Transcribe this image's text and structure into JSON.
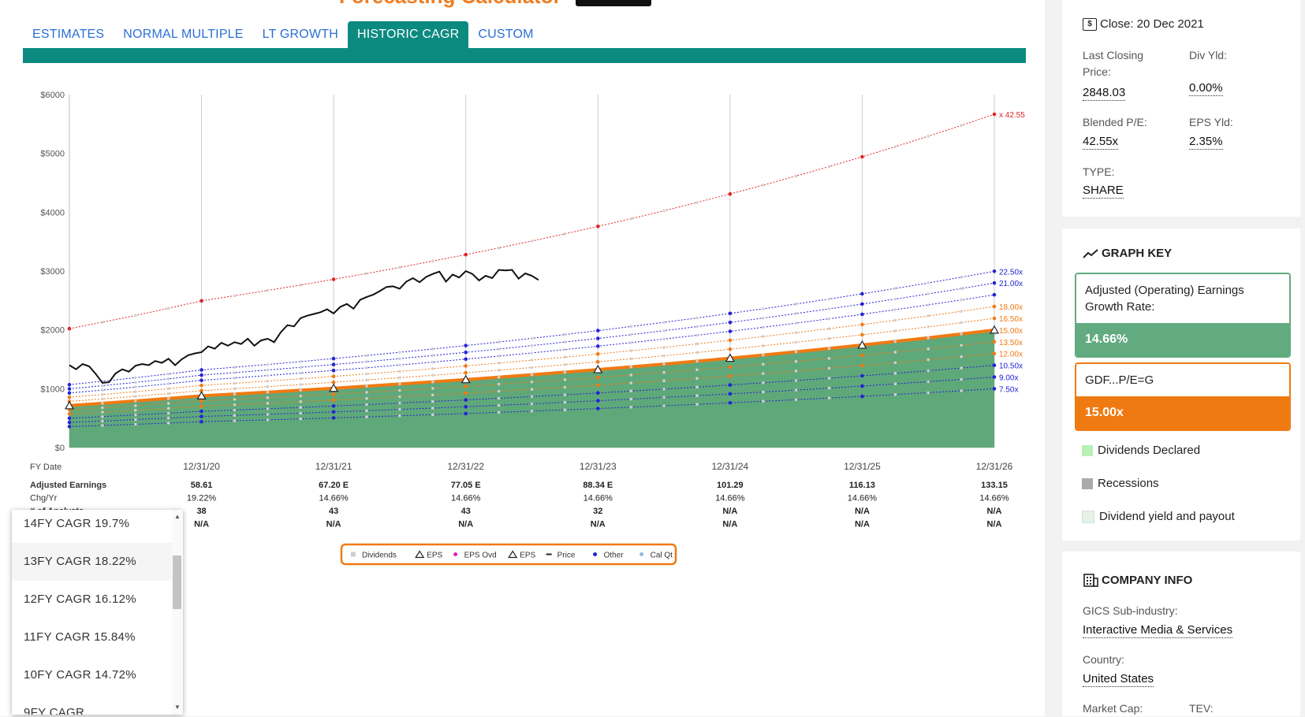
{
  "tabs": [
    {
      "label": "ESTIMATES"
    },
    {
      "label": "NORMAL MULTIPLE"
    },
    {
      "label": "LT GROWTH"
    },
    {
      "label": "HISTORIC CAGR",
      "active": true
    },
    {
      "label": "CUSTOM"
    }
  ],
  "chart_data": {
    "type": "area",
    "y_ticks": [
      "$6000",
      "$5000",
      "$4000",
      "$3000",
      "$2000",
      "$1000",
      "$0"
    ],
    "ylim": [
      0,
      6000
    ],
    "x_label": "FY Date",
    "x_categories": [
      "12/31/20",
      "12/31/21",
      "12/31/22",
      "12/31/23",
      "12/31/24",
      "12/31/25",
      "12/31/26"
    ],
    "grid": true,
    "table_rows": [
      {
        "label": "Adjusted Earnings",
        "bold": true,
        "values": [
          "58.61",
          "67.20 E",
          "77.05 E",
          "88.34 E",
          "101.29",
          "116.13",
          "133.15"
        ]
      },
      {
        "label": "Chg/Yr",
        "bold": false,
        "values": [
          "19.22%",
          "14.66%",
          "14.66%",
          "14.66%",
          "14.66%",
          "14.66%",
          "14.66%"
        ]
      },
      {
        "label": "# of Analysts",
        "bold": true,
        "values": [
          "38",
          "43",
          "43",
          "32",
          "N/A",
          "N/A",
          "N/A"
        ]
      },
      {
        "label": "",
        "bold": true,
        "values": [
          "N/A",
          "N/A",
          "N/A",
          "N/A",
          "N/A",
          "N/A",
          "N/A"
        ]
      }
    ],
    "earnings_x": [
      0,
      1,
      2,
      3,
      4,
      5,
      6,
      7
    ],
    "earnings": [
      47.5,
      58.61,
      67.2,
      77.05,
      88.34,
      101.29,
      116.13,
      133.15
    ],
    "pe_lines": [
      {
        "label": "x 42.55",
        "pe": 42.55,
        "color": "#e02424"
      },
      {
        "label": "22.50x",
        "pe": 22.5,
        "color": "#2323d6"
      },
      {
        "label": "21.00x",
        "pe": 21.0,
        "color": "#2323d6"
      },
      {
        "label": "",
        "pe": 19.5,
        "color": "#2323d6"
      },
      {
        "label": "18.00x",
        "pe": 18.0,
        "color": "#f07a12"
      },
      {
        "label": "16.50x",
        "pe": 16.5,
        "color": "#f07a12"
      },
      {
        "label": "15.00x",
        "pe": 15.0,
        "color": "#f07a12",
        "main": true
      },
      {
        "label": "13.50x",
        "pe": 13.5,
        "color": "#f07a12"
      },
      {
        "label": "12.00x",
        "pe": 12.0,
        "color": "#f07a12"
      },
      {
        "label": "10.50x",
        "pe": 10.5,
        "color": "#2323d6"
      },
      {
        "label": "9.00x",
        "pe": 9.0,
        "color": "#2323d6"
      },
      {
        "label": "7.50x",
        "pe": 7.5,
        "color": "#2323d6"
      }
    ],
    "price_series": [
      [
        0.0,
        1400
      ],
      [
        0.05,
        1330
      ],
      [
        0.1,
        1420
      ],
      [
        0.15,
        1380
      ],
      [
        0.2,
        1250
      ],
      [
        0.25,
        1100
      ],
      [
        0.3,
        1110
      ],
      [
        0.35,
        1260
      ],
      [
        0.4,
        1330
      ],
      [
        0.45,
        1290
      ],
      [
        0.5,
        1390
      ],
      [
        0.55,
        1420
      ],
      [
        0.6,
        1400
      ],
      [
        0.65,
        1470
      ],
      [
        0.7,
        1440
      ],
      [
        0.75,
        1510
      ],
      [
        0.8,
        1400
      ],
      [
        0.85,
        1500
      ],
      [
        0.9,
        1570
      ],
      [
        0.95,
        1600
      ],
      [
        1.0,
        1620
      ],
      [
        1.05,
        1720
      ],
      [
        1.1,
        1680
      ],
      [
        1.15,
        1780
      ],
      [
        1.2,
        1730
      ],
      [
        1.25,
        1790
      ],
      [
        1.3,
        1760
      ],
      [
        1.35,
        1850
      ],
      [
        1.4,
        1730
      ],
      [
        1.45,
        1820
      ],
      [
        1.5,
        1850
      ],
      [
        1.55,
        1790
      ],
      [
        1.6,
        1960
      ],
      [
        1.65,
        2080
      ],
      [
        1.7,
        2060
      ],
      [
        1.75,
        2200
      ],
      [
        1.8,
        2240
      ],
      [
        1.85,
        2270
      ],
      [
        1.9,
        2300
      ],
      [
        1.95,
        2350
      ],
      [
        2.0,
        2280
      ],
      [
        2.05,
        2390
      ],
      [
        2.1,
        2440
      ],
      [
        2.15,
        2360
      ],
      [
        2.2,
        2510
      ],
      [
        2.25,
        2560
      ],
      [
        2.3,
        2600
      ],
      [
        2.35,
        2660
      ],
      [
        2.4,
        2730
      ],
      [
        2.45,
        2740
      ],
      [
        2.5,
        2700
      ],
      [
        2.55,
        2820
      ],
      [
        2.6,
        2880
      ],
      [
        2.65,
        2810
      ],
      [
        2.7,
        2900
      ],
      [
        2.75,
        2950
      ],
      [
        2.8,
        2990
      ],
      [
        2.85,
        2820
      ],
      [
        2.9,
        2940
      ],
      [
        2.95,
        2890
      ],
      [
        3.0,
        3000
      ],
      [
        3.05,
        2950
      ],
      [
        3.1,
        2840
      ],
      [
        3.15,
        2920
      ],
      [
        3.2,
        2880
      ],
      [
        3.25,
        3020
      ],
      [
        3.3,
        3010
      ],
      [
        3.35,
        3020
      ],
      [
        3.4,
        2870
      ],
      [
        3.45,
        2960
      ],
      [
        3.5,
        2920
      ],
      [
        3.55,
        2848
      ]
    ],
    "legend": [
      {
        "label": "Dividends",
        "marker": "square",
        "color": "#cfcfcf"
      },
      {
        "label": "EPS",
        "marker": "triangle",
        "color": "#222"
      },
      {
        "label": "EPS Ovd",
        "marker": "dot",
        "color": "#e020c8"
      },
      {
        "label": "EPS",
        "marker": "triangle",
        "color": "#222"
      },
      {
        "label": "Price",
        "marker": "dash",
        "color": "#222"
      },
      {
        "label": "Other",
        "marker": "dot",
        "color": "#2323d6"
      },
      {
        "label": "Cal Qt",
        "marker": "dot",
        "color": "#8fb6e0"
      }
    ],
    "area_color": "#5fa87a"
  },
  "dropdown": {
    "items": [
      "14FY CAGR 19.7%",
      "13FY CAGR 18.22%",
      "12FY CAGR 16.12%",
      "11FY CAGR 15.84%",
      "10FY CAGR 14.72%"
    ],
    "highlighted_index": 1
  },
  "facts": {
    "close_label": "Close: 20 Dec 2021",
    "last_closing_label": "Last Closing Price:",
    "last_closing_value": "2848.03",
    "div_yld_label": "Div Yld:",
    "div_yld_value": "0.00%",
    "blended_pe_label": "Blended P/E:",
    "blended_pe_value": "42.55x",
    "eps_yld_label": "EPS Yld:",
    "eps_yld_value": "2.35%",
    "type_label": "TYPE:",
    "type_value": "SHARE"
  },
  "graph_key": {
    "title": "GRAPH KEY",
    "growth_label": "Adjusted (Operating) Earnings Growth Rate:",
    "growth_value": "14.66%",
    "pe_label": "GDF...P/E=G",
    "pe_value": "15.00x",
    "legend": [
      {
        "label": "Dividends Declared",
        "color": "#b8f0b8"
      },
      {
        "label": "Recessions",
        "color": "#aaaaaa"
      },
      {
        "label": "Dividend yield and payout",
        "color": "#e6f2e6"
      }
    ]
  },
  "company": {
    "title": "COMPANY INFO",
    "subindustry_label": "GICS Sub-industry:",
    "subindustry_value": "Interactive Media & Services",
    "country_label": "Country:",
    "country_value": "United States",
    "market_cap_label": "Market Cap:",
    "tev_label": "TEV:"
  }
}
